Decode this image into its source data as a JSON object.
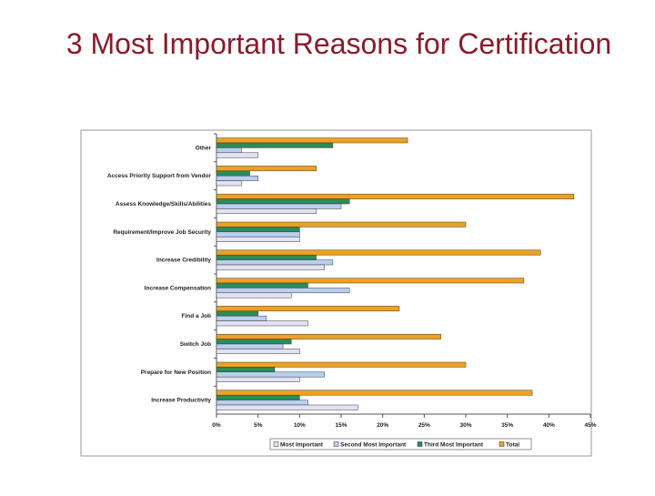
{
  "slide": {
    "title": "3 Most Important Reasons for Certification"
  },
  "chart_data": {
    "type": "bar",
    "orientation": "horizontal",
    "categories": [
      "Other",
      "Access Priority Support from Vendor",
      "Assess Knowledge/Skills/Abilities",
      "Requirement/Improve Job Security",
      "Increase Credibility",
      "Increase Compensation",
      "Find a Job",
      "Switch Job",
      "Prepare for New Position",
      "Increase Productivity"
    ],
    "series": [
      {
        "name": "Total",
        "color": "#f0a020",
        "values": [
          23,
          12,
          43,
          30,
          39,
          37,
          22,
          27,
          30,
          38
        ]
      },
      {
        "name": "Third Most Important",
        "color": "#2e8b57",
        "values": [
          14,
          4,
          16,
          10,
          12,
          11,
          5,
          9,
          7,
          10
        ]
      },
      {
        "name": "Second Most Important",
        "color": "#b8d0f0",
        "values": [
          3,
          5,
          15,
          10,
          14,
          16,
          6,
          8,
          13,
          11
        ]
      },
      {
        "name": "Most Important",
        "color": "#e2e2f4",
        "values": [
          5,
          3,
          12,
          10,
          13,
          9,
          11,
          10,
          10,
          17
        ]
      }
    ],
    "legend_order": [
      "Most Important",
      "Second Most Important",
      "Third Most Important",
      "Total"
    ],
    "xlim": [
      0,
      45
    ],
    "xticks": [
      0,
      5,
      10,
      15,
      20,
      25,
      30,
      35,
      40,
      45
    ],
    "xtick_labels": [
      "0%",
      "5%",
      "10%",
      "15%",
      "20%",
      "25%",
      "30%",
      "35%",
      "40%",
      "45%"
    ],
    "grid": false,
    "legend_position": "bottom"
  }
}
